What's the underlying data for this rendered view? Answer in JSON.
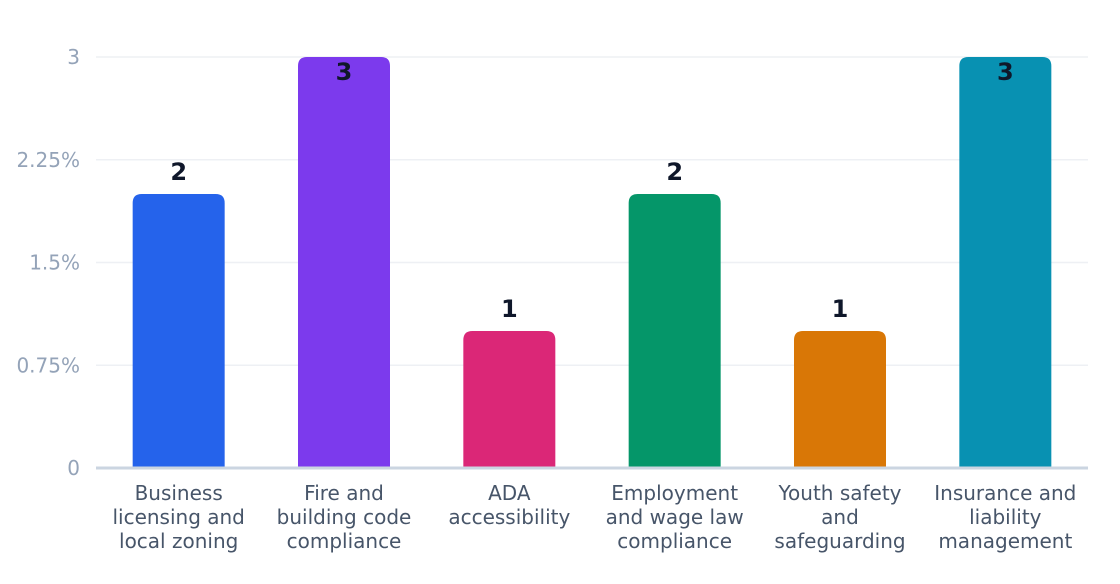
{
  "chart_data": {
    "type": "bar",
    "categories": [
      "Business licensing and local zoning",
      "Fire and building code compliance",
      "ADA accessibility",
      "Employment and wage law compliance",
      "Youth safety and safeguarding",
      "Insurance and liability management"
    ],
    "category_lines": [
      [
        "Business",
        "licensing and",
        "local zoning"
      ],
      [
        "Fire and",
        "building code",
        "compliance"
      ],
      [
        "ADA",
        "accessibility"
      ],
      [
        "Employment",
        "and wage law",
        "compliance"
      ],
      [
        "Youth safety",
        "and",
        "safeguarding"
      ],
      [
        "Insurance and",
        "liability",
        "management"
      ]
    ],
    "values": [
      2,
      3,
      1,
      2,
      1,
      3
    ],
    "data_labels": [
      "2",
      "3",
      "1",
      "2",
      "1",
      "3"
    ],
    "colors": [
      "#2563eb",
      "#7c3aed",
      "#db2777",
      "#059669",
      "#d97706",
      "#0891b2"
    ],
    "yticks": [
      0,
      0.75,
      1.5,
      2.25,
      3
    ],
    "ytick_labels": [
      "0",
      "0.75%",
      "1.5%",
      "2.25%",
      "3"
    ],
    "ylim": [
      0,
      3
    ],
    "grid": true,
    "legend": false,
    "title": "",
    "xlabel": "",
    "ylabel": ""
  }
}
